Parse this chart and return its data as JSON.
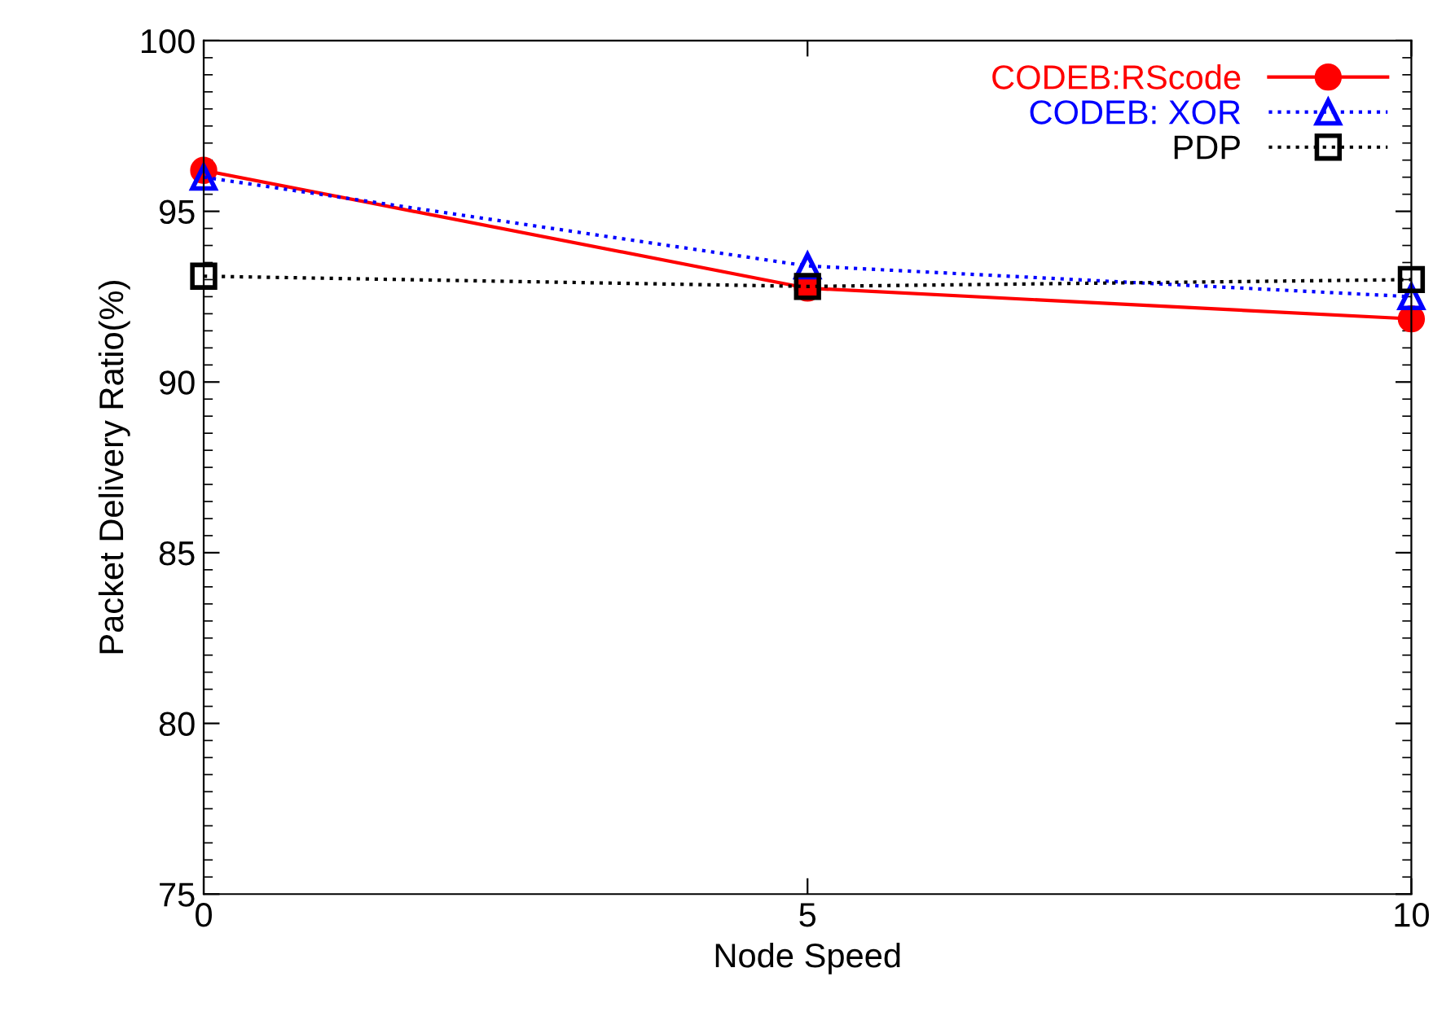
{
  "chart_data": {
    "type": "line",
    "xlabel": "Node Speed",
    "ylabel": "Packet Delivery Ratio(%)",
    "x": [
      0,
      5,
      10
    ],
    "xlim": [
      0,
      10
    ],
    "xticks": [
      0,
      5,
      10
    ],
    "ylim": [
      75,
      100
    ],
    "yticks": [
      75,
      80,
      85,
      90,
      95,
      100
    ],
    "series": [
      {
        "name": "CODEB:RScode",
        "color": "#ff0000",
        "values": [
          96.2,
          92.75,
          91.85
        ],
        "marker": "circle",
        "line_style": "solid"
      },
      {
        "name": "CODEB: XOR",
        "color": "#0000ff",
        "values": [
          96.0,
          93.4,
          92.5
        ],
        "marker": "triangle",
        "line_style": "dotted"
      },
      {
        "name": "PDP",
        "color": "#000000",
        "values": [
          93.1,
          92.8,
          93.0
        ],
        "marker": "square",
        "line_style": "dotted"
      }
    ],
    "legend": "top right",
    "grid": false
  }
}
